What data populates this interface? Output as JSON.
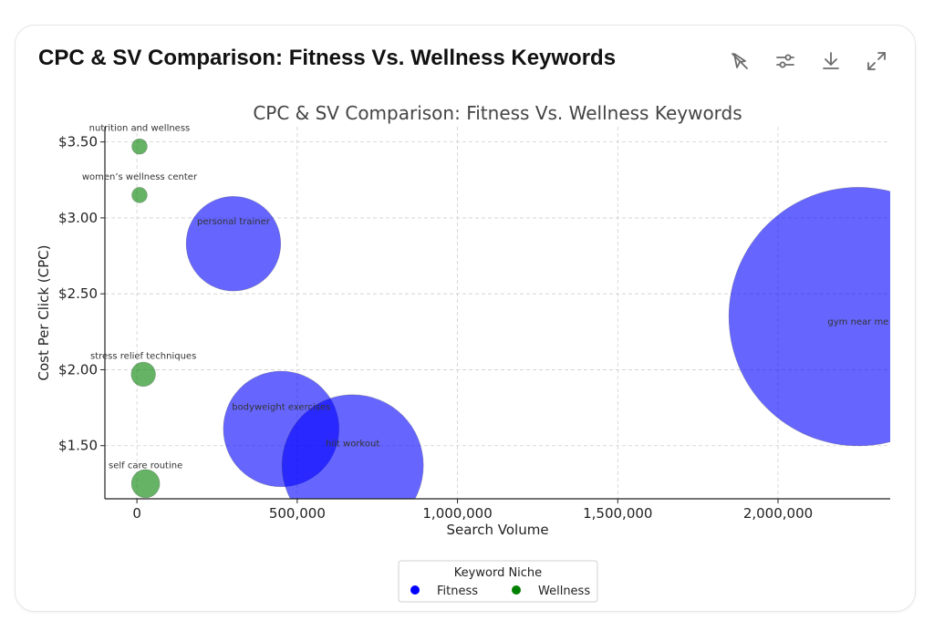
{
  "card": {
    "title": "CPC & SV Comparison: Fitness Vs. Wellness Keywords"
  },
  "toolbar": [
    {
      "name": "hide-chart-button",
      "icon": "pointer-slash-icon"
    },
    {
      "name": "chart-settings-button",
      "icon": "sliders-icon"
    },
    {
      "name": "download-button",
      "icon": "download-icon"
    },
    {
      "name": "expand-button",
      "icon": "expand-icon"
    }
  ],
  "chart_data": {
    "type": "scatter",
    "title": "CPC & SV Comparison: Fitness Vs. Wellness Keywords",
    "xlabel": "Search Volume",
    "ylabel": "Cost Per Click (CPC)",
    "xlim": [
      -100000,
      2350000
    ],
    "ylim": [
      1.15,
      3.6
    ],
    "xticks": [
      0,
      500000,
      1000000,
      1500000,
      2000000
    ],
    "xtick_labels": [
      "0",
      "500,000",
      "1,000,000",
      "1,500,000",
      "2,000,000"
    ],
    "yticks": [
      1.5,
      2.0,
      2.5,
      3.0,
      3.5
    ],
    "ytick_labels": [
      "$1.50",
      "$2.00",
      "$2.50",
      "$3.00",
      "$3.50"
    ],
    "grid": true,
    "legend": {
      "title": "Keyword Niche",
      "placement": "bottom-center"
    },
    "series": [
      {
        "name": "Fitness",
        "color": "#0000ff",
        "points": [
          {
            "label": "gym near me",
            "x": 2250000,
            "y": 2.35,
            "size": 2250000
          },
          {
            "label": "personal trainer",
            "x": 301000,
            "y": 2.83,
            "size": 301000
          },
          {
            "label": "bodyweight exercises",
            "x": 450000,
            "y": 1.61,
            "size": 450000
          },
          {
            "label": "hiit workout",
            "x": 673000,
            "y": 1.37,
            "size": 673000
          }
        ]
      },
      {
        "name": "Wellness",
        "color": "#008000",
        "points": [
          {
            "label": "nutrition and wellness",
            "x": 8000,
            "y": 3.47,
            "size": 8000
          },
          {
            "label": "women’s wellness center",
            "x": 8000,
            "y": 3.15,
            "size": 8000
          },
          {
            "label": "stress relief techniques",
            "x": 20000,
            "y": 1.97,
            "size": 20000
          },
          {
            "label": "self care routine",
            "x": 27000,
            "y": 1.25,
            "size": 27000
          }
        ]
      }
    ]
  }
}
